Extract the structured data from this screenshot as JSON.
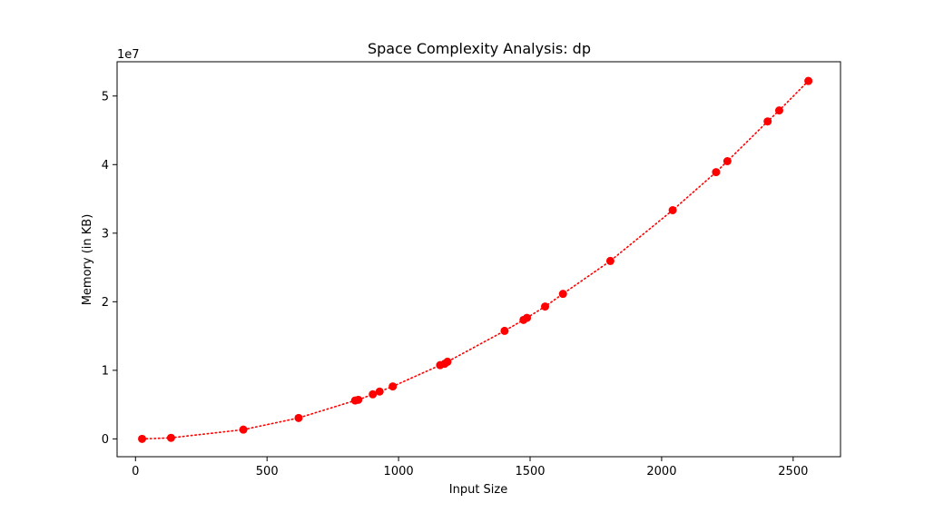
{
  "chart_data": {
    "type": "line",
    "title": "Space Complexity Analysis: dp",
    "xlabel": "Input Size",
    "ylabel": "Memory (in KB)",
    "y_offset_label": "1e7",
    "xlim": [
      -70,
      2680
    ],
    "ylim": [
      -2600000,
      55000000
    ],
    "y_scale_factor": 10000000,
    "xticks": [
      0,
      500,
      1000,
      1500,
      2000,
      2500
    ],
    "yticks": [
      0,
      10000000,
      20000000,
      30000000,
      40000000,
      50000000
    ],
    "xtick_labels": [
      "0",
      "500",
      "1000",
      "1500",
      "2000",
      "2500"
    ],
    "ytick_labels": [
      "0",
      "1",
      "2",
      "3",
      "4",
      "5"
    ],
    "grid": false,
    "series": [
      {
        "color": "#ff0000",
        "line_style": "dotted",
        "marker": "circle",
        "x": [
          25,
          135,
          410,
          620,
          835,
          847,
          902,
          928,
          978,
          1158,
          1175,
          1186,
          1403,
          1475,
          1488,
          1557,
          1625,
          1805,
          2042,
          2207,
          2250,
          2403,
          2447,
          2558
        ],
        "y": [
          0,
          150000,
          1350000,
          3050000,
          5600000,
          5700000,
          6500000,
          6900000,
          7650000,
          10750000,
          10950000,
          11250000,
          15750000,
          17350000,
          17650000,
          19300000,
          21150000,
          25950000,
          33350000,
          38900000,
          40500000,
          46300000,
          47900000,
          52200000
        ]
      }
    ]
  }
}
